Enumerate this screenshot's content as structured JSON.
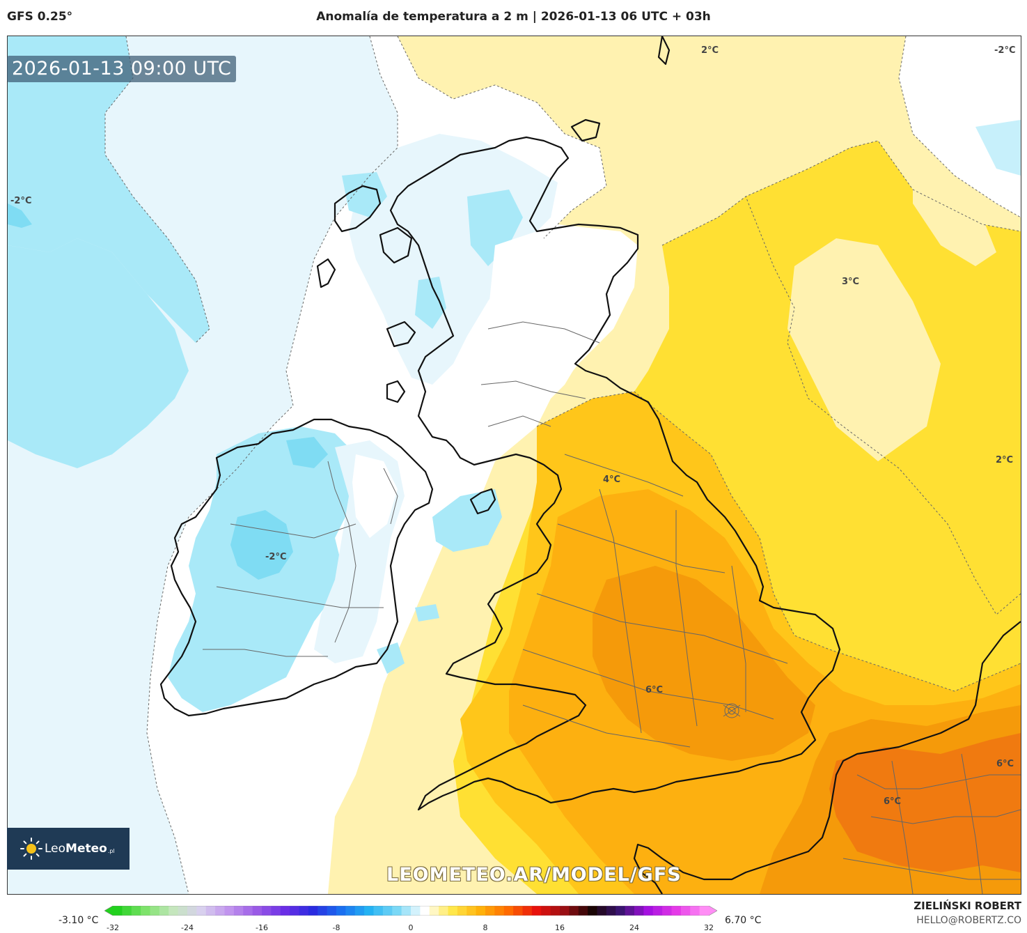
{
  "header": {
    "model": "GFS 0.25°",
    "title": "Anomalía de temperatura a 2 m | 2026-01-13 06 UTC + 03h"
  },
  "map": {
    "valid_time": "2026-01-13 09:00 UTC",
    "watermark": "LEOMETEO.AR/MODEL/GFS",
    "logo": {
      "brand_regular": "Leo",
      "brand_bold": "Meteo",
      "tld": ".pl"
    },
    "contour_labels": {
      "top_center": "2°C",
      "top_right": "-2°C",
      "left_ocean": "-2°C",
      "north_sea": "3°C",
      "east_edge": "2°C",
      "northern_england": "4°C",
      "ireland": "-2°C",
      "midlands": "6°C",
      "benelux_east": "6°C",
      "france_north": "6°C"
    },
    "colors": {
      "cold_strong": "#54d6f0",
      "cold": "#a9e9f8",
      "cool": "#e7f6fc",
      "neutral": "#ffffff",
      "warm_light": "#fff2b0",
      "warm": "#ffe033",
      "warmer": "#ffc61a",
      "orange": "#fdb010",
      "orange_dark": "#f59a0a",
      "hot": "#f07a10",
      "coast": "#111111",
      "borders": "#666666"
    }
  },
  "colorbar": {
    "min_label": "-3.10 °C",
    "max_label": "6.70 °C",
    "ticks": [
      "-32",
      "-24",
      "-16",
      "-8",
      "0",
      "8",
      "16",
      "24",
      "32"
    ],
    "stops": [
      "#22d11e",
      "#7ee36b",
      "#c5e6bd",
      "#d8d0ee",
      "#c194ee",
      "#9a5ae6",
      "#6a2ee6",
      "#2a2be0",
      "#1a6ff0",
      "#24b2f3",
      "#7ad8f6",
      "#ffffff",
      "#ffe74a",
      "#ffb10a",
      "#ff6a00",
      "#e8120c",
      "#9a0f14",
      "#1a0505",
      "#3a1470",
      "#a510e0",
      "#e53ae8",
      "#ff8df5"
    ]
  },
  "credit": {
    "name": "ZIELIŃSKI ROBERT",
    "email": "HELLO@ROBERTZ.CO"
  }
}
